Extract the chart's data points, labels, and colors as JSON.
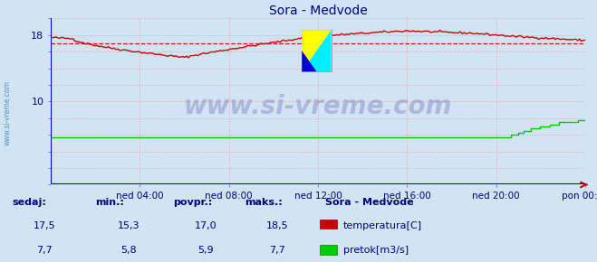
{
  "title": "Sora - Medvode",
  "title_color": "#000080",
  "bg_color": "#d0e4f4",
  "grid_color": "#ff9999",
  "grid_style": ":",
  "ylim": [
    0,
    20
  ],
  "ytick_vals": [
    0,
    2,
    4,
    6,
    8,
    10,
    12,
    14,
    16,
    18,
    20
  ],
  "ytick_show": {
    "10": "10",
    "18": "18"
  },
  "xtick_labels": [
    "ned 04:00",
    "ned 08:00",
    "ned 12:00",
    "ned 16:00",
    "ned 20:00",
    "pon 00:00"
  ],
  "temp_color": "#cc0000",
  "flow_color": "#00cc00",
  "avg_line_color": "#cc0000",
  "avg_value": 17.0,
  "watermark_text": "www.si-vreme.com",
  "watermark_color": "#000080",
  "left_label": "www.si-vreme.com",
  "left_label_color": "#4488cc",
  "bottom_line_color": "#0000cc",
  "right_arrow_color": "#cc0000",
  "legend_title": "Sora - Medvode",
  "legend_color": "#000080",
  "temp_vals": [
    "17,5",
    "15,3",
    "17,0",
    "18,5"
  ],
  "flow_vals": [
    "7,7",
    "5,8",
    "5,9",
    "7,7"
  ],
  "headers": [
    "sedaj:",
    "min.:",
    "povpr.:",
    "maks.:"
  ]
}
